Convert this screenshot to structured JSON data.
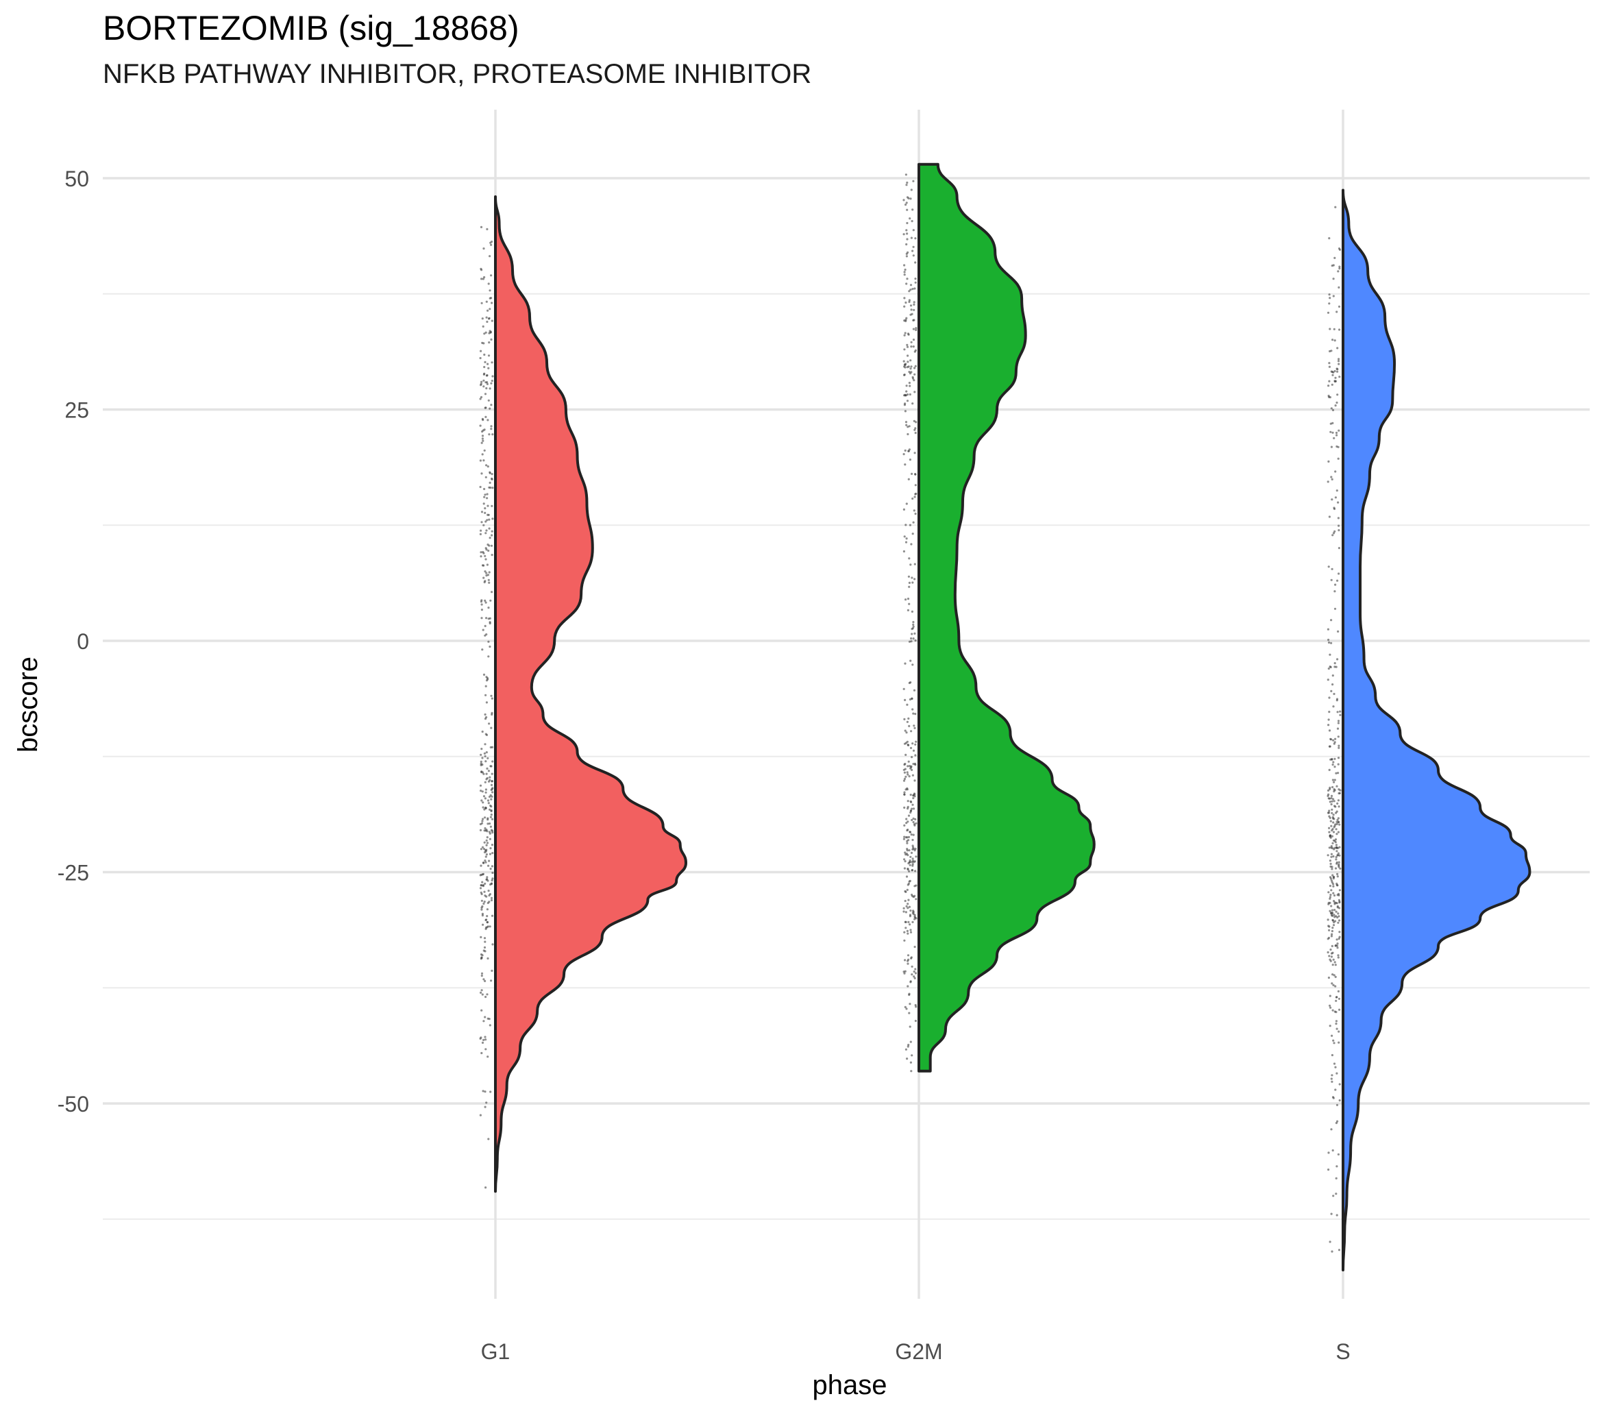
{
  "chart_data": {
    "type": "violin",
    "title": "BORTEZOMIB (sig_18868)",
    "subtitle": "NFKB PATHWAY INHIBITOR, PROTEASOME INHIBITOR",
    "xlabel": "phase",
    "ylabel": "bcscore",
    "categories": [
      "G1",
      "G2M",
      "S"
    ],
    "ylim": [
      -73,
      57
    ],
    "yticks": [
      -50,
      -25,
      0,
      25,
      50
    ],
    "ytick_labels": [
      "-50",
      "-25",
      "0",
      "25",
      "50"
    ],
    "grid": true,
    "legend": "none",
    "series": [
      {
        "category": "G1",
        "color": "#F26060",
        "min": -59.5,
        "max": 48,
        "density_profile": [
          [
            48,
            0
          ],
          [
            45,
            0.02
          ],
          [
            40,
            0.09
          ],
          [
            35,
            0.18
          ],
          [
            30,
            0.27
          ],
          [
            25,
            0.37
          ],
          [
            20,
            0.43
          ],
          [
            15,
            0.48
          ],
          [
            10,
            0.51
          ],
          [
            5,
            0.45
          ],
          [
            0,
            0.31
          ],
          [
            -5,
            0.19
          ],
          [
            -8,
            0.25
          ],
          [
            -12,
            0.43
          ],
          [
            -16,
            0.67
          ],
          [
            -20,
            0.88
          ],
          [
            -22,
            0.97
          ],
          [
            -24,
            1.0
          ],
          [
            -26,
            0.95
          ],
          [
            -28,
            0.8
          ],
          [
            -32,
            0.56
          ],
          [
            -36,
            0.36
          ],
          [
            -40,
            0.22
          ],
          [
            -44,
            0.13
          ],
          [
            -48,
            0.06
          ],
          [
            -52,
            0.03
          ],
          [
            -56,
            0.01
          ],
          [
            -59.5,
            0
          ]
        ]
      },
      {
        "category": "G2M",
        "color": "#1AAF2F",
        "min": -46.5,
        "max": 51.5,
        "density_profile": [
          [
            51.5,
            0.1
          ],
          [
            48,
            0.2
          ],
          [
            42,
            0.4
          ],
          [
            37,
            0.54
          ],
          [
            33,
            0.56
          ],
          [
            29,
            0.51
          ],
          [
            25,
            0.41
          ],
          [
            20,
            0.29
          ],
          [
            15,
            0.23
          ],
          [
            10,
            0.2
          ],
          [
            5,
            0.19
          ],
          [
            0,
            0.21
          ],
          [
            -5,
            0.3
          ],
          [
            -10,
            0.48
          ],
          [
            -15,
            0.7
          ],
          [
            -18,
            0.84
          ],
          [
            -20,
            0.9
          ],
          [
            -22,
            0.92
          ],
          [
            -24,
            0.9
          ],
          [
            -26,
            0.82
          ],
          [
            -30,
            0.62
          ],
          [
            -34,
            0.41
          ],
          [
            -38,
            0.26
          ],
          [
            -42,
            0.14
          ],
          [
            -45,
            0.06
          ],
          [
            -46.5,
            0.06
          ]
        ]
      },
      {
        "category": "S",
        "color": "#4F88FF",
        "min": -68,
        "max": 48.7,
        "density_profile": [
          [
            48.7,
            0
          ],
          [
            45,
            0.03
          ],
          [
            40,
            0.13
          ],
          [
            35,
            0.22
          ],
          [
            30,
            0.27
          ],
          [
            26,
            0.26
          ],
          [
            22,
            0.19
          ],
          [
            18,
            0.14
          ],
          [
            13,
            0.1
          ],
          [
            8,
            0.09
          ],
          [
            3,
            0.09
          ],
          [
            -2,
            0.11
          ],
          [
            -6,
            0.17
          ],
          [
            -10,
            0.3
          ],
          [
            -14,
            0.5
          ],
          [
            -18,
            0.72
          ],
          [
            -21,
            0.88
          ],
          [
            -23,
            0.96
          ],
          [
            -25,
            0.98
          ],
          [
            -27,
            0.92
          ],
          [
            -30,
            0.72
          ],
          [
            -33,
            0.5
          ],
          [
            -37,
            0.31
          ],
          [
            -41,
            0.2
          ],
          [
            -45,
            0.14
          ],
          [
            -50,
            0.08
          ],
          [
            -55,
            0.04
          ],
          [
            -60,
            0.02
          ],
          [
            -64,
            0.008
          ],
          [
            -68,
            0
          ]
        ]
      }
    ]
  }
}
